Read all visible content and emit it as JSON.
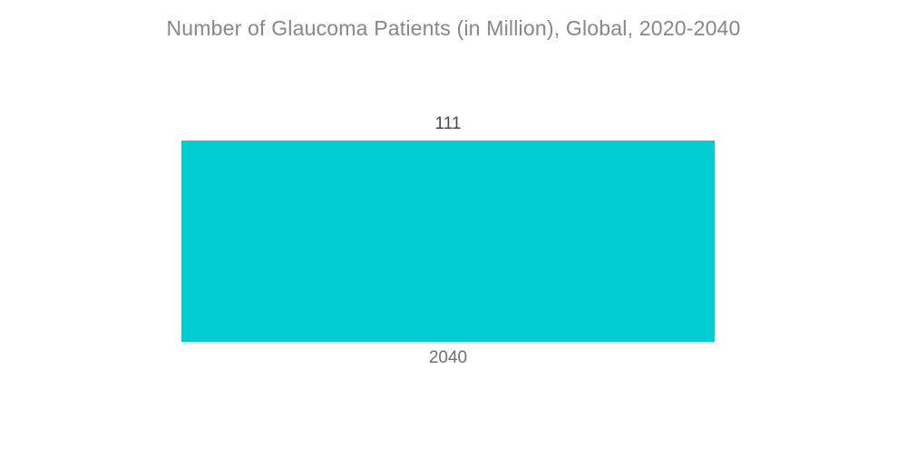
{
  "chart_data": {
    "type": "bar",
    "title": "Number of Glaucoma Patients (in Million), Global, 2020-2040",
    "categories": [
      "2040"
    ],
    "values": [
      111
    ],
    "value_labels": [
      "111"
    ],
    "xlabel": "",
    "ylabel": "",
    "ylim": [
      0,
      111
    ],
    "grid": false,
    "legend": "none",
    "axes_visible": false,
    "bar_color": "#00CCD2",
    "background_color": "#FFFFFF",
    "title_color": "#85878A",
    "value_label_color": "#4A4A4A",
    "category_label_color": "#6E6E6E"
  }
}
